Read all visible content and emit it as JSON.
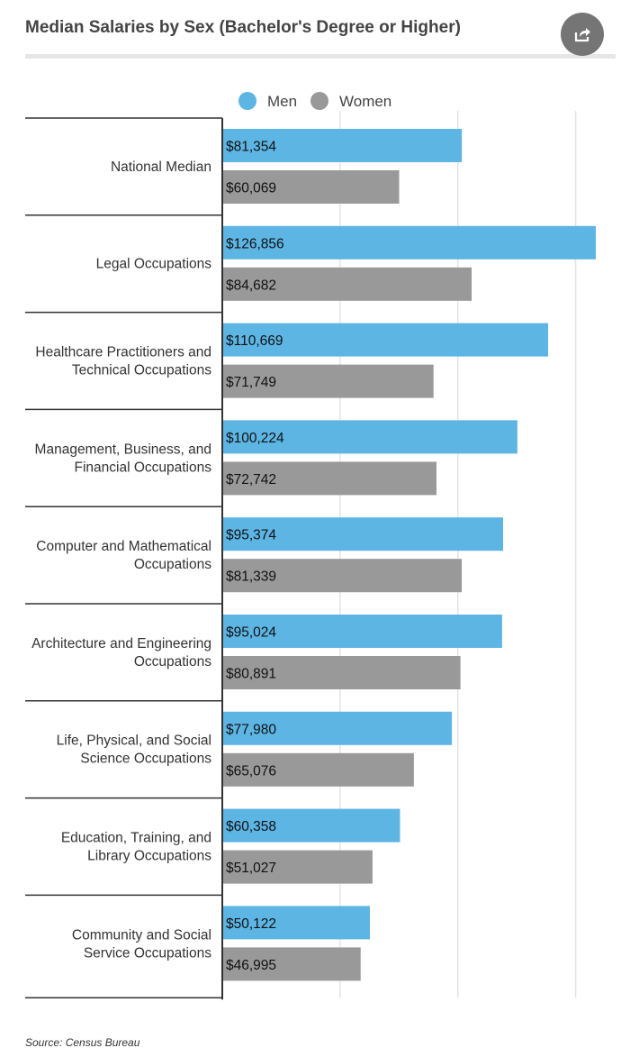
{
  "header": {
    "title": "Median Salaries by Sex (Bachelor's Degree or Higher)",
    "share_icon": "share-icon"
  },
  "footer": {
    "source": "Source: Census Bureau"
  },
  "colors": {
    "men": "#5db5e4",
    "women": "#999999",
    "axis": "#333333",
    "grid": "#e3e3e3"
  },
  "chart_data": {
    "type": "bar",
    "orientation": "horizontal",
    "title": "Median Salaries by Sex (Bachelor's Degree or Higher)",
    "categories": [
      "National Median",
      "Legal Occupations",
      "Healthcare Practitioners and Technical Occupations",
      "Management, Business, and Financial Occupations",
      "Computer and Mathematical Occupations",
      "Architecture and Engineering Occupations",
      "Life, Physical, and Social Science Occupations",
      "Education, Training, and Library Occupations",
      "Community and Social Service Occupations"
    ],
    "category_lines": [
      [
        "National Median"
      ],
      [
        "Legal Occupations"
      ],
      [
        "Healthcare Practitioners and",
        "Technical Occupations"
      ],
      [
        "Management, Business, and",
        "Financial Occupations"
      ],
      [
        "Computer and Mathematical",
        "Occupations"
      ],
      [
        "Architecture and Engineering",
        "Occupations"
      ],
      [
        "Life, Physical, and Social",
        "Science Occupations"
      ],
      [
        "Education, Training, and",
        "Library Occupations"
      ],
      [
        "Community and Social",
        "Service Occupations"
      ]
    ],
    "series": [
      {
        "name": "Men",
        "color": "#5db5e4",
        "values": [
          81354,
          126856,
          110669,
          100224,
          95374,
          95024,
          77980,
          60358,
          50122
        ],
        "labels": [
          "$81,354",
          "$126,856",
          "$110,669",
          "$100,224",
          "$95,374",
          "$95,024",
          "$77,980",
          "$60,358",
          "$50,122"
        ]
      },
      {
        "name": "Women",
        "color": "#999999",
        "values": [
          60069,
          84682,
          71749,
          72742,
          81339,
          80891,
          65076,
          51027,
          46995
        ],
        "labels": [
          "$60,069",
          "$84,682",
          "$71,749",
          "$72,742",
          "$81,339",
          "$80,891",
          "$65,076",
          "$51,027",
          "$46,995"
        ]
      }
    ],
    "xlim": [
      0,
      128000
    ],
    "gridlines_at": [
      40000,
      80000,
      120000
    ],
    "tick_labels_shown": false,
    "grid": true,
    "legend": "top-center"
  }
}
